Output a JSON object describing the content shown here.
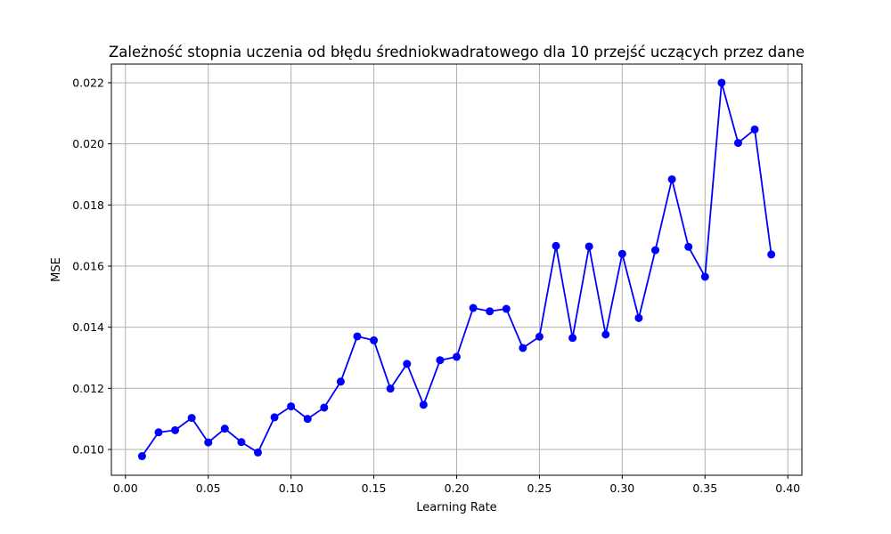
{
  "chart_data": {
    "type": "line",
    "title": "Zależność stopnia uczenia od błędu średniokwadratowego dla 10 przejść uczących przez dane",
    "xlabel": "Learning Rate",
    "ylabel": "MSE",
    "xlim": [
      -0.0085,
      0.4085
    ],
    "ylim": [
      0.009155,
      0.02261
    ],
    "xticks": [
      0.0,
      0.05,
      0.1,
      0.15,
      0.2,
      0.25,
      0.3,
      0.35,
      0.4
    ],
    "xtick_labels": [
      "0.00",
      "0.05",
      "0.10",
      "0.15",
      "0.20",
      "0.25",
      "0.30",
      "0.35",
      "0.40"
    ],
    "yticks": [
      0.01,
      0.012,
      0.014,
      0.016,
      0.018,
      0.02,
      0.022
    ],
    "ytick_labels": [
      "0.010",
      "0.012",
      "0.014",
      "0.016",
      "0.018",
      "0.020",
      "0.022"
    ],
    "grid": true,
    "color": "#0000ff",
    "series": [
      {
        "x": [
          0.01,
          0.02,
          0.03,
          0.04,
          0.05,
          0.06,
          0.07,
          0.08,
          0.09,
          0.1,
          0.11,
          0.12,
          0.13,
          0.14,
          0.15,
          0.16,
          0.17,
          0.18,
          0.19,
          0.2,
          0.21,
          0.22,
          0.23,
          0.24,
          0.25,
          0.26,
          0.27,
          0.28,
          0.29,
          0.3,
          0.31,
          0.32,
          0.33,
          0.34,
          0.35,
          0.36,
          0.37,
          0.38,
          0.39
        ],
        "y": [
          0.00978,
          0.01056,
          0.01063,
          0.01103,
          0.01023,
          0.01068,
          0.01024,
          0.0099,
          0.01105,
          0.01141,
          0.011,
          0.01137,
          0.01222,
          0.0137,
          0.01357,
          0.01199,
          0.0128,
          0.01146,
          0.01292,
          0.01303,
          0.01463,
          0.01452,
          0.0146,
          0.01332,
          0.01369,
          0.01666,
          0.01365,
          0.01664,
          0.01376,
          0.0164,
          0.0143,
          0.01652,
          0.01884,
          0.01663,
          0.01565,
          0.022,
          0.02003,
          0.02047,
          0.01638
        ]
      }
    ]
  }
}
